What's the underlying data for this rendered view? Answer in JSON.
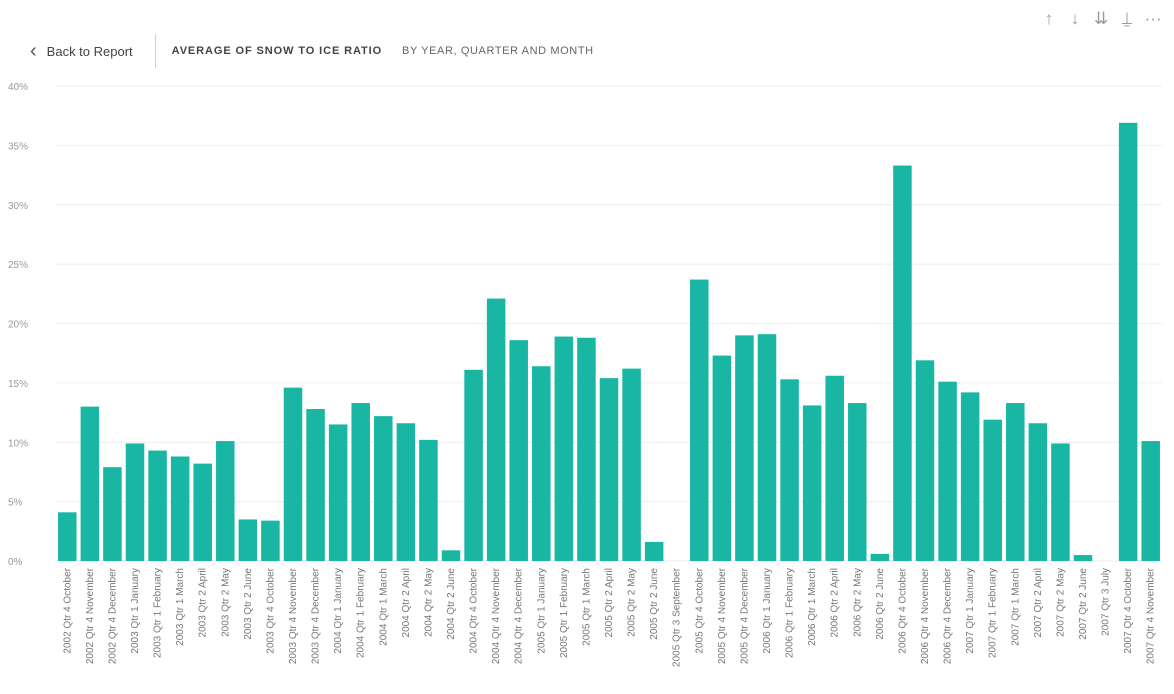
{
  "header": {
    "back_label": "Back to Report",
    "title": "AVERAGE OF SNOW TO ICE RATIO",
    "subtitle": "BY YEAR, QUARTER AND MONTH"
  },
  "toolbar": {
    "drill_up": "↑",
    "drill_down": "↓",
    "expand_all": "⇊",
    "expand_hierarchy": "⍊",
    "more_options": "···"
  },
  "colors": {
    "bar": "#1AB6A4",
    "grid": "#eeeeee"
  },
  "chart_data": {
    "type": "bar",
    "title": "AVERAGE OF SNOW TO ICE RATIO",
    "subtitle": "BY YEAR, QUARTER AND MONTH",
    "xlabel": "",
    "ylabel": "",
    "ylim": [
      0,
      40
    ],
    "yticks": [
      "0%",
      "5%",
      "10%",
      "15%",
      "20%",
      "25%",
      "30%",
      "35%",
      "40%"
    ],
    "grid": true,
    "categories": [
      "2002 Qtr 4 October",
      "2002 Qtr 4 November",
      "2002 Qtr 4 December",
      "2003 Qtr 1 January",
      "2003 Qtr 1 February",
      "2003 Qtr 1 March",
      "2003 Qtr 2 April",
      "2003 Qtr 2 May",
      "2003 Qtr 2 June",
      "2003 Qtr 4 October",
      "2003 Qtr 4 November",
      "2003 Qtr 4 December",
      "2004 Qtr 1 January",
      "2004 Qtr 1 February",
      "2004 Qtr 1 March",
      "2004 Qtr 2 April",
      "2004 Qtr 2 May",
      "2004 Qtr 2 June",
      "2004 Qtr 4 October",
      "2004 Qtr 4 November",
      "2004 Qtr 4 December",
      "2005 Qtr 1 January",
      "2005 Qtr 1 February",
      "2005 Qtr 1 March",
      "2005 Qtr 2 April",
      "2005 Qtr 2 May",
      "2005 Qtr 2 June",
      "2005 Qtr 3 September",
      "2005 Qtr 4 October",
      "2005 Qtr 4 November",
      "2005 Qtr 4 December",
      "2006 Qtr 1 January",
      "2006 Qtr 1 February",
      "2006 Qtr 1 March",
      "2006 Qtr 2 April",
      "2006 Qtr 2 May",
      "2006 Qtr 2 June",
      "2006 Qtr 4 October",
      "2006 Qtr 4 November",
      "2006 Qtr 4 December",
      "2007 Qtr 1 January",
      "2007 Qtr 1 February",
      "2007 Qtr 1 March",
      "2007 Qtr 2 April",
      "2007 Qtr 2 May",
      "2007 Qtr 2 June",
      "2007 Qtr 3 July",
      "2007 Qtr 4 October",
      "2007 Qtr 4 November"
    ],
    "values": [
      4.1,
      13.0,
      7.9,
      9.9,
      9.3,
      8.8,
      8.2,
      10.1,
      3.5,
      3.4,
      14.6,
      12.8,
      11.5,
      13.3,
      12.2,
      11.6,
      10.2,
      0.9,
      16.1,
      22.1,
      18.6,
      16.4,
      18.9,
      18.8,
      15.4,
      16.2,
      1.6,
      0.0,
      23.7,
      17.3,
      19.0,
      19.1,
      15.3,
      13.1,
      15.6,
      13.3,
      0.6,
      33.3,
      16.9,
      15.1,
      14.2,
      11.9,
      13.3,
      11.6,
      9.9,
      0.5,
      0.0,
      36.9,
      10.1
    ]
  }
}
